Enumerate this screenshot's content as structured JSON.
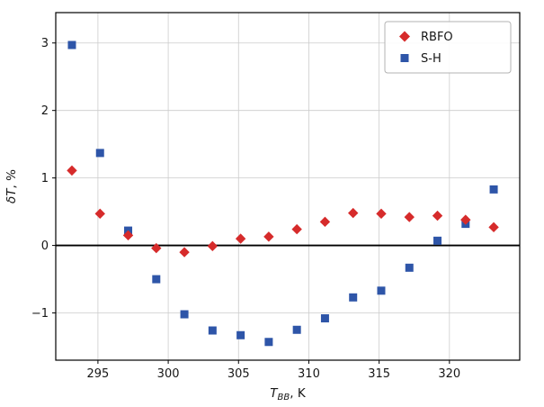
{
  "chart_data": {
    "type": "scatter",
    "title": "",
    "xlabel": {
      "var": "T",
      "sub": "BB",
      "unit": ", K"
    },
    "ylabel": {
      "var": "δT",
      "unit": ", %"
    },
    "xlim": [
      292,
      325
    ],
    "ylim": [
      -1.7,
      3.45
    ],
    "xticks": [
      295,
      300,
      305,
      310,
      315,
      320
    ],
    "yticks": [
      -1,
      0,
      1,
      2,
      3
    ],
    "grid": true,
    "zero_line": true,
    "legend_position": "upper right",
    "x": [
      293.15,
      295.15,
      297.15,
      299.15,
      301.15,
      303.15,
      305.15,
      307.15,
      309.15,
      311.15,
      313.15,
      315.15,
      317.15,
      319.15,
      321.15,
      323.15
    ],
    "series": [
      {
        "name": "RBFO",
        "marker": "diamond",
        "color": "#d62b2b",
        "values": [
          1.11,
          0.47,
          0.15,
          -0.04,
          -0.1,
          -0.01,
          0.1,
          0.13,
          0.24,
          0.35,
          0.48,
          0.47,
          0.42,
          0.44,
          0.38,
          0.27
        ]
      },
      {
        "name": "S-H",
        "marker": "square",
        "color": "#2e55a8",
        "values": [
          2.97,
          1.37,
          0.22,
          -0.5,
          -1.02,
          -1.26,
          -1.33,
          -1.43,
          -1.25,
          -1.08,
          -0.77,
          -0.67,
          -0.33,
          0.07,
          0.32,
          0.83
        ]
      }
    ]
  }
}
